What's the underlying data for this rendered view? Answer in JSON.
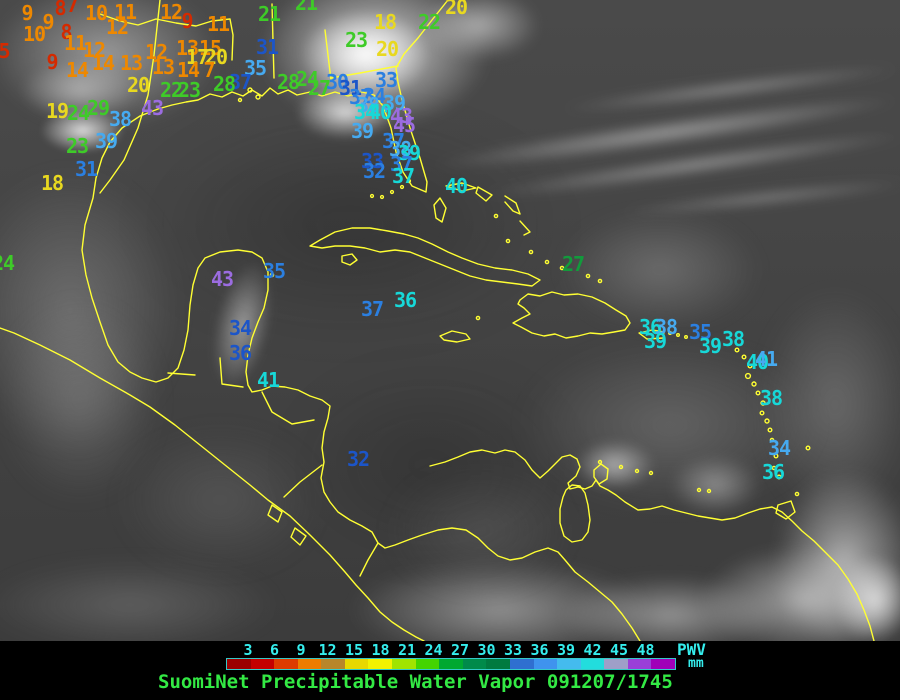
{
  "legend": {
    "ticks": [
      "3",
      "6",
      "9",
      "12",
      "15",
      "18",
      "21",
      "24",
      "27",
      "30",
      "33",
      "36",
      "39",
      "42",
      "45",
      "48"
    ],
    "tick_color": "#35eded",
    "bar_colors": [
      "#9b0000",
      "#c40000",
      "#dd3b00",
      "#ee7c00",
      "#b8862a",
      "#e8d800",
      "#f2f200",
      "#a0e400",
      "#44d400",
      "#00a830",
      "#008a4a",
      "#007a40",
      "#2f6fd0",
      "#3f93ee",
      "#44bbee",
      "#22dddd",
      "#9f9fc8",
      "#9a3fd8",
      "#a000b8"
    ],
    "unit_label": "PWV",
    "unit_sub": "mm",
    "caption": "SuomiNet Precipitable Water Vapor 091207/1745",
    "caption_color": "#33e944"
  },
  "map": {
    "coast_color": "#ffff33",
    "palette": {
      "red": "#d42a00",
      "orange": "#ee8800",
      "yellow": "#e8d820",
      "green": "#3ecb28",
      "darkgreen": "#129a3c",
      "blue": "#2b7fe0",
      "darkblue": "#1c55c8",
      "lightblue": "#46aaf0",
      "cyan": "#17d8d8",
      "purple": "#9b6ce0"
    },
    "stations": [
      [
        "9",
        27,
        13,
        "orange"
      ],
      [
        "8",
        60,
        8,
        "red"
      ],
      [
        "7",
        72,
        5,
        "red"
      ],
      [
        "10",
        96,
        13,
        "orange"
      ],
      [
        "11",
        125,
        12,
        "orange"
      ],
      [
        "12",
        117,
        27,
        "orange"
      ],
      [
        "9",
        48,
        22,
        "orange"
      ],
      [
        "10",
        34,
        34,
        "orange"
      ],
      [
        "8",
        66,
        32,
        "red"
      ],
      [
        "11",
        75,
        43,
        "orange"
      ],
      [
        "5",
        4,
        51,
        "red"
      ],
      [
        "9",
        52,
        62,
        "red"
      ],
      [
        "12",
        94,
        50,
        "orange"
      ],
      [
        "14",
        77,
        70,
        "orange"
      ],
      [
        "14",
        103,
        63,
        "orange"
      ],
      [
        "13",
        131,
        63,
        "orange"
      ],
      [
        "12",
        156,
        52,
        "orange"
      ],
      [
        "13",
        163,
        67,
        "orange"
      ],
      [
        "12",
        171,
        12,
        "orange"
      ],
      [
        "9",
        187,
        21,
        "red"
      ],
      [
        "11",
        218,
        24,
        "orange"
      ],
      [
        "13",
        187,
        48,
        "orange"
      ],
      [
        "15",
        210,
        48,
        "orange"
      ],
      [
        "17",
        197,
        57,
        "yellow"
      ],
      [
        "20",
        216,
        57,
        "yellow"
      ],
      [
        "14",
        188,
        70,
        "orange"
      ],
      [
        "7",
        209,
        70,
        "orange"
      ],
      [
        "20",
        138,
        85,
        "yellow"
      ],
      [
        "22",
        171,
        90,
        "green"
      ],
      [
        "23",
        189,
        90,
        "green"
      ],
      [
        "21",
        269,
        14,
        "green"
      ],
      [
        "21",
        306,
        3,
        "green"
      ],
      [
        "31",
        267,
        47,
        "darkblue"
      ],
      [
        "35",
        255,
        68,
        "lightblue"
      ],
      [
        "37",
        240,
        82,
        "darkblue"
      ],
      [
        "28",
        224,
        84,
        "green"
      ],
      [
        "28",
        288,
        82,
        "green"
      ],
      [
        "24",
        307,
        79,
        "green"
      ],
      [
        "27",
        319,
        88,
        "green"
      ],
      [
        "30",
        337,
        82,
        "blue"
      ],
      [
        "31",
        350,
        88,
        "darkblue"
      ],
      [
        "23",
        356,
        40,
        "green"
      ],
      [
        "18",
        385,
        22,
        "yellow"
      ],
      [
        "20",
        387,
        49,
        "yellow"
      ],
      [
        "22",
        429,
        22,
        "green"
      ],
      [
        "20",
        456,
        7,
        "yellow"
      ],
      [
        "19",
        57,
        111,
        "yellow"
      ],
      [
        "24",
        78,
        113,
        "green"
      ],
      [
        "29",
        98,
        108,
        "green"
      ],
      [
        "38",
        120,
        119,
        "lightblue"
      ],
      [
        "43",
        152,
        108,
        "purple"
      ],
      [
        "39",
        106,
        141,
        "lightblue"
      ],
      [
        "23",
        77,
        146,
        "green"
      ],
      [
        "31",
        86,
        169,
        "blue"
      ],
      [
        "18",
        52,
        183,
        "yellow"
      ],
      [
        "24",
        3,
        263,
        "green"
      ],
      [
        "33",
        386,
        80,
        "blue"
      ],
      [
        "37",
        360,
        97,
        "blue"
      ],
      [
        "34",
        374,
        96,
        "blue"
      ],
      [
        "38",
        368,
        105,
        "lightblue"
      ],
      [
        "39",
        394,
        103,
        "lightblue"
      ],
      [
        "34",
        365,
        112,
        "cyan"
      ],
      [
        "40",
        380,
        112,
        "cyan"
      ],
      [
        "43",
        401,
        116,
        "purple"
      ],
      [
        "45",
        404,
        125,
        "purple"
      ],
      [
        "39",
        362,
        131,
        "lightblue"
      ],
      [
        "37",
        393,
        141,
        "blue"
      ],
      [
        "38",
        400,
        149,
        "lightblue"
      ],
      [
        "39",
        409,
        153,
        "cyan"
      ],
      [
        "33",
        372,
        161,
        "darkblue"
      ],
      [
        "32",
        374,
        171,
        "blue"
      ],
      [
        "37",
        401,
        164,
        "blue"
      ],
      [
        "37",
        403,
        176,
        "cyan"
      ],
      [
        "40",
        456,
        186,
        "cyan"
      ],
      [
        "43",
        222,
        279,
        "purple"
      ],
      [
        "35",
        274,
        271,
        "blue"
      ],
      [
        "37",
        372,
        309,
        "blue"
      ],
      [
        "36",
        405,
        300,
        "cyan"
      ],
      [
        "34",
        240,
        328,
        "darkblue"
      ],
      [
        "36",
        240,
        353,
        "darkblue"
      ],
      [
        "41",
        268,
        380,
        "cyan"
      ],
      [
        "27",
        573,
        264,
        "darkgreen"
      ],
      [
        "32",
        358,
        459,
        "darkblue"
      ],
      [
        "36",
        650,
        327,
        "cyan"
      ],
      [
        "38",
        666,
        327,
        "lightblue"
      ],
      [
        "35",
        700,
        332,
        "blue"
      ],
      [
        "39",
        655,
        341,
        "cyan"
      ],
      [
        "39",
        710,
        346,
        "cyan"
      ],
      [
        "38",
        733,
        339,
        "cyan"
      ],
      [
        "40",
        757,
        362,
        "cyan"
      ],
      [
        "41",
        766,
        359,
        "lightblue"
      ],
      [
        "38",
        771,
        398,
        "cyan"
      ],
      [
        "34",
        779,
        448,
        "lightblue"
      ],
      [
        "36",
        773,
        472,
        "cyan"
      ]
    ]
  }
}
